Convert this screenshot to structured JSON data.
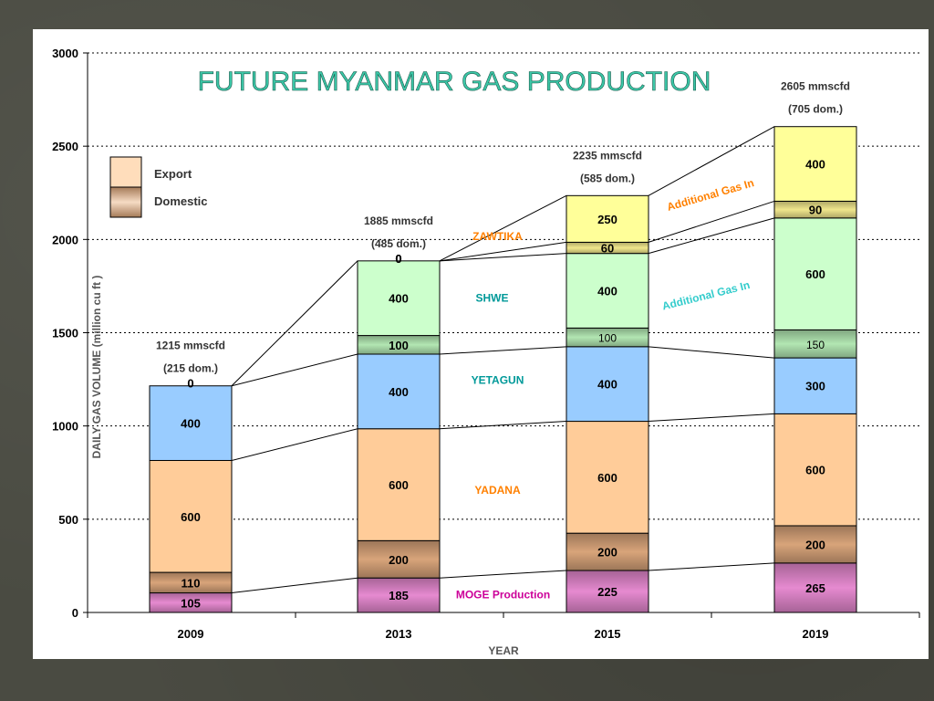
{
  "chart_data": {
    "type": "bar",
    "stacked": true,
    "title": "FUTURE  MYANMAR  GAS  PRODUCTION",
    "xlabel": "YEAR",
    "ylabel": "DAILY GAS VOLUME (million cu ft )",
    "ylim": [
      0,
      3000
    ],
    "yticks": [
      "0",
      "500",
      "1000",
      "1500",
      "2000",
      "2500",
      "3000"
    ],
    "grid": true,
    "categories": [
      "2009",
      "2013",
      "2015",
      "2019"
    ],
    "series": [
      {
        "name": "MOGE Production",
        "values": [
          105,
          185,
          225,
          265
        ],
        "labels": [
          "105",
          "185",
          "225",
          "265"
        ],
        "color": "#e68ad0",
        "shade": "domestic"
      },
      {
        "name": "YADANA",
        "values": [
          110,
          200,
          200,
          200
        ],
        "labels": [
          "110",
          "200",
          "200",
          "200"
        ],
        "color": "#d8a47a",
        "shade": "domestic"
      },
      {
        "name": "YADANA",
        "values": [
          600,
          600,
          600,
          600
        ],
        "labels": [
          "600",
          "600",
          "600",
          "600"
        ],
        "color": "#ffcc99",
        "shade": "export"
      },
      {
        "name": "YETAGUN",
        "values": [
          400,
          400,
          400,
          300
        ],
        "labels": [
          "400",
          "400",
          "400",
          "300"
        ],
        "color": "#99ccff",
        "shade": "export"
      },
      {
        "name": "SHWE",
        "values": [
          0,
          100,
          100,
          150
        ],
        "labels": [
          "0",
          "100",
          "100",
          "150"
        ],
        "color": "#b2e6b2",
        "shade": "domestic"
      },
      {
        "name": "SHWE",
        "values": [
          0,
          400,
          400,
          600
        ],
        "labels": [
          "",
          "400",
          "400",
          "600"
        ],
        "color": "#ccffcc",
        "shade": "export"
      },
      {
        "name": "ZAWTIKA",
        "values": [
          0,
          0,
          60,
          90
        ],
        "labels": [
          "",
          "0",
          "60",
          "90"
        ],
        "color": "#f0e68c",
        "shade": "domestic"
      },
      {
        "name": "Additional Gas In",
        "values": [
          0,
          0,
          250,
          400
        ],
        "labels": [
          "",
          "0",
          "250",
          "400"
        ],
        "color": "#ffff99",
        "shade": "export"
      }
    ],
    "totals": [
      {
        "line1": "1215 mmscfd",
        "line2": "(215 dom.)"
      },
      {
        "line1": "1885 mmscfd",
        "line2": "(485 dom.)"
      },
      {
        "line1": "2235 mmscfd",
        "line2": "(585 dom.)"
      },
      {
        "line1": "2605 mmscfd",
        "line2": "(705 dom.)"
      }
    ],
    "field_labels": [
      {
        "text": "MOGE Production",
        "color": "#cc0099"
      },
      {
        "text": "YADANA",
        "color": "#ff8000"
      },
      {
        "text": "YETAGUN",
        "color": "#009999"
      },
      {
        "text": "SHWE",
        "color": "#009999"
      },
      {
        "text": "ZAWTIKA",
        "color": "#ff8000"
      },
      {
        "text": "Additional Gas In",
        "color": "#ff8000"
      },
      {
        "text": "Additional Gas In",
        "color": "#33cccc"
      }
    ],
    "legend": {
      "position": "top-left",
      "items": [
        {
          "label": "Export",
          "color": "#ffddbb"
        },
        {
          "label": "Domestic",
          "color": "#d8a47a"
        }
      ]
    }
  }
}
